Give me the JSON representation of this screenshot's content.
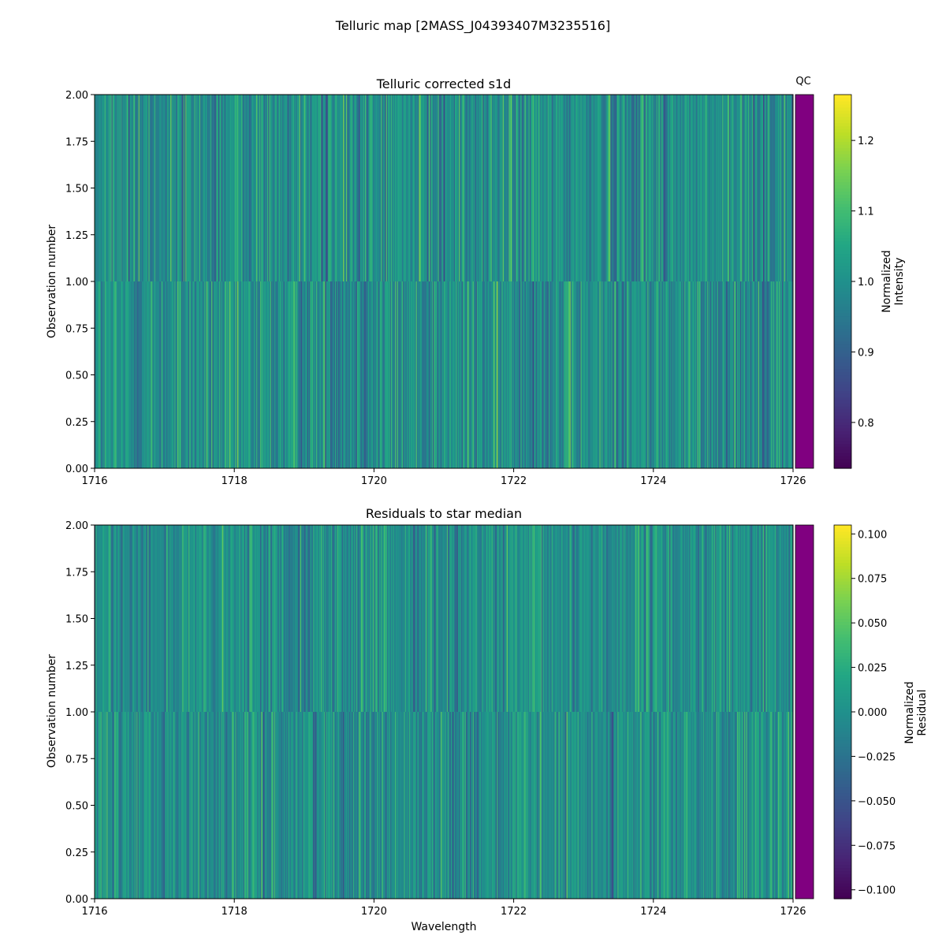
{
  "figure": {
    "title": "Telluric map [2MASS_J04393407M3235516]"
  },
  "colors": {
    "qc_bar": "#800080",
    "axes_edge": "#000000",
    "colormap": "viridis"
  },
  "chart_data": [
    {
      "type": "heatmap",
      "title": "Telluric corrected s1d",
      "xlabel": "",
      "ylabel": "Observation number",
      "xlim": [
        1716,
        1726
      ],
      "ylim": [
        0,
        2
      ],
      "x_ticks": [
        "1716",
        "1718",
        "1720",
        "1722",
        "1724",
        "1726"
      ],
      "y_ticks": [
        "0.00",
        "0.25",
        "0.50",
        "0.75",
        "1.00",
        "1.25",
        "1.50",
        "1.75",
        "2.00"
      ],
      "rows": 2,
      "qc_label": "QC",
      "colorbar": {
        "label_line1": "Normalized",
        "label_line2": "Intensity",
        "range": [
          0.735,
          1.265
        ],
        "ticks": [
          "0.8",
          "0.9",
          "1.0",
          "1.1",
          "1.2"
        ],
        "tick_values": [
          0.8,
          0.9,
          1.0,
          1.1,
          1.2
        ]
      },
      "value_center": 1.0,
      "value_spread": 0.085
    },
    {
      "type": "heatmap",
      "title": "Residuals to star median",
      "xlabel": "Wavelength",
      "ylabel": "Observation number",
      "xlim": [
        1716,
        1726
      ],
      "ylim": [
        0,
        2
      ],
      "x_ticks": [
        "1716",
        "1718",
        "1720",
        "1722",
        "1724",
        "1726"
      ],
      "y_ticks": [
        "0.00",
        "0.25",
        "0.50",
        "0.75",
        "1.00",
        "1.25",
        "1.50",
        "1.75",
        "2.00"
      ],
      "rows": 2,
      "qc_label": "",
      "colorbar": {
        "label_line1": "Normalized",
        "label_line2": "Residual",
        "range": [
          -0.105,
          0.105
        ],
        "ticks": [
          "0.100",
          "0.075",
          "0.050",
          "0.025",
          "0.000",
          "−0.025",
          "−0.050",
          "−0.075",
          "−0.100"
        ],
        "tick_values": [
          0.1,
          0.075,
          0.05,
          0.025,
          0.0,
          -0.025,
          -0.05,
          -0.075,
          -0.1
        ]
      },
      "value_center": 0.0,
      "value_spread": 0.028
    }
  ]
}
